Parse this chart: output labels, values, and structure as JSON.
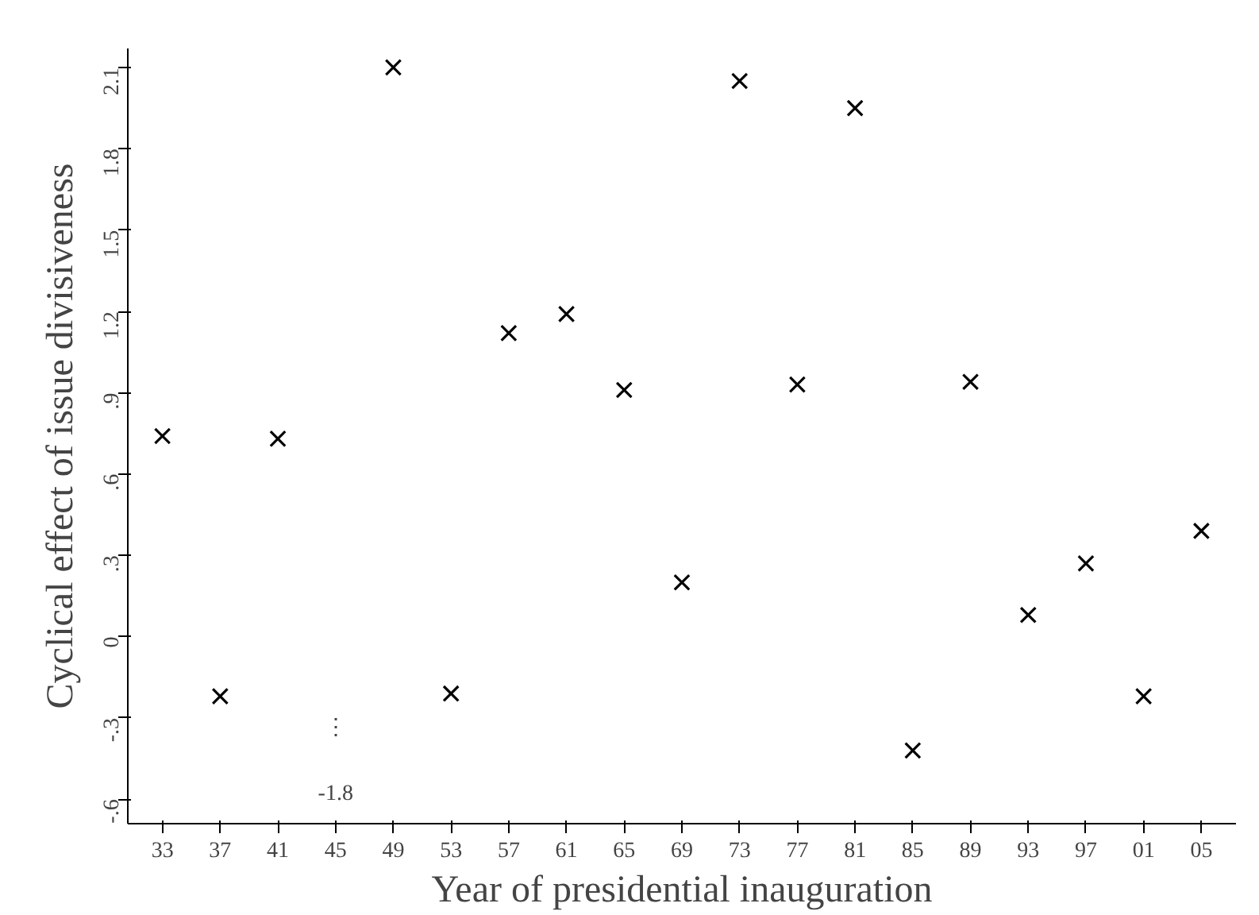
{
  "chart_data": {
    "type": "scatter",
    "xlabel": "Year of presidential inauguration",
    "ylabel": "Cyclical effect of issue divisiveness",
    "categories": [
      "33",
      "37",
      "41",
      "45",
      "49",
      "53",
      "57",
      "61",
      "65",
      "69",
      "73",
      "77",
      "81",
      "85",
      "89",
      "93",
      "97",
      "01",
      "05"
    ],
    "values": [
      0.74,
      -0.22,
      0.73,
      null,
      2.1,
      -0.21,
      1.12,
      1.19,
      0.91,
      0.2,
      2.05,
      0.93,
      1.95,
      -0.42,
      0.94,
      0.08,
      0.27,
      -0.22,
      0.39
    ],
    "color": "#000000",
    "marker": "cross",
    "grid": false,
    "ylim": [
      -0.69,
      2.17
    ],
    "yticks": [
      {
        "value": -0.6,
        "label": "-.6"
      },
      {
        "value": -0.3,
        "label": "-.3"
      },
      0,
      {
        "value": 0.3,
        "label": ".3"
      },
      {
        "value": 0.6,
        "label": ".6"
      },
      {
        "value": 0.9,
        "label": ".9"
      },
      1.2,
      1.5,
      1.8,
      2.1
    ],
    "annotations": [
      "⋮",
      "-1.8"
    ]
  }
}
